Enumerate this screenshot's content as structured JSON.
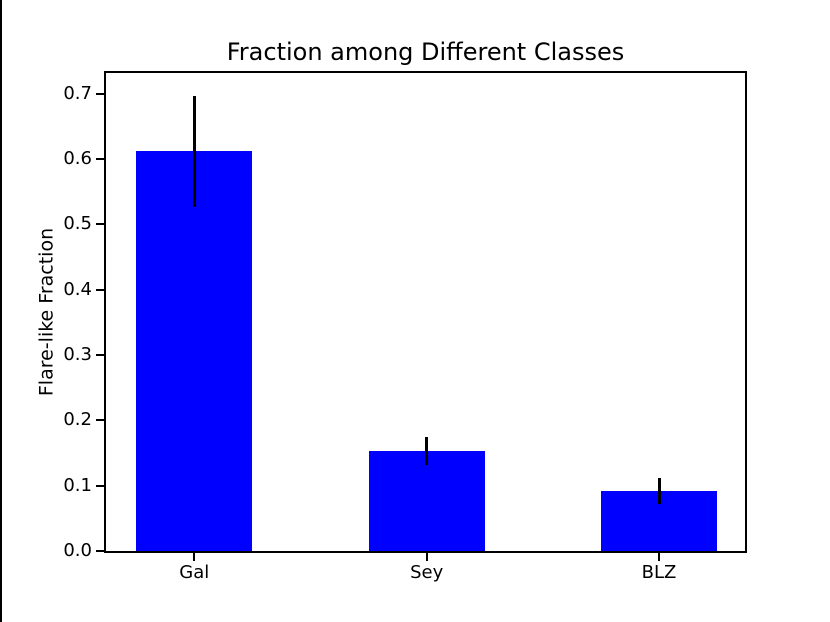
{
  "chart_data": {
    "type": "bar",
    "title": "Fraction among Different Classes",
    "xlabel": "",
    "ylabel": "Flare-like Fraction",
    "categories": [
      "Gal",
      "Sey",
      "BLZ"
    ],
    "x": [
      0,
      1,
      2
    ],
    "values": [
      0.612,
      0.153,
      0.092
    ],
    "yerr": [
      0.085,
      0.022,
      0.02
    ],
    "yticks": [
      0.0,
      0.1,
      0.2,
      0.3,
      0.4,
      0.5,
      0.6,
      0.7
    ],
    "ytick_labels": [
      "0.0",
      "0.1",
      "0.2",
      "0.3",
      "0.4",
      "0.5",
      "0.6",
      "0.7"
    ],
    "ylim": [
      0,
      0.732
    ],
    "xlim": [
      -0.38,
      2.37
    ],
    "bar_width": 0.5,
    "bar_color": "#0000ff",
    "error_bar_color": "#000000",
    "axis_color": "#000000",
    "background_color": "#ffffff",
    "grid": false,
    "legend_position": "none"
  }
}
